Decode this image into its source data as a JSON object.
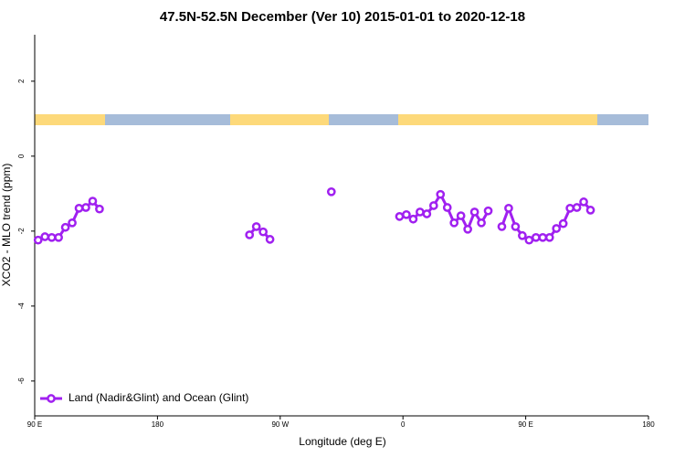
{
  "chart_data": {
    "type": "line",
    "title": "47.5N-52.5N December (Ver 10)   2015-01-01 to 2020-12-18",
    "x_label": "Longitude (deg E)",
    "y_label": "XCO2 - MLO trend (ppm)",
    "x": [
      92.5,
      97.5,
      102.5,
      107.5,
      112.5,
      117.5,
      122.5,
      127.5,
      132.5,
      137.5,
      142.5,
      247.5,
      252.5,
      257.5,
      262.5,
      302.5,
      307.5,
      312.5,
      357.5,
      362.5,
      367.5,
      372.5,
      377.5,
      382.5,
      387.5,
      392.5,
      397.5,
      402.5,
      407.5,
      412.5,
      417.5,
      422.5,
      427.5,
      432.5,
      437.5,
      442.5,
      447.5,
      452.5,
      457.5,
      462.5,
      467.5,
      472.5,
      477.5,
      482.5,
      487.5,
      492.5,
      497.5
    ],
    "series": [
      {
        "name": "Land (Nadir&Glint) and Ocean (Glint)",
        "color": "#a020f0",
        "values": [
          -2.24,
          -2.15,
          -2.17,
          -2.17,
          -1.9,
          -1.78,
          -1.39,
          -1.37,
          -1.2,
          -1.41,
          null,
          -2.1,
          -1.88,
          -2.02,
          -2.22,
          null,
          -0.95,
          null,
          -1.61,
          -1.56,
          -1.68,
          -1.49,
          -1.54,
          -1.32,
          -1.02,
          -1.37,
          -1.78,
          -1.59,
          -1.95,
          -1.49,
          -1.78,
          -1.46,
          null,
          -1.88,
          -1.39,
          -1.88,
          -2.12,
          -2.24,
          -2.17,
          -2.17,
          -2.17,
          -1.93,
          -1.8,
          -1.39,
          -1.37,
          -1.22,
          -1.44
        ]
      }
    ],
    "xlim": [
      90,
      540
    ],
    "xticks": [
      {
        "value": 90,
        "label": "90 E"
      },
      180,
      {
        "value": 270,
        "label": "90 W"
      },
      {
        "value": 360,
        "label": "0"
      },
      {
        "value": 450,
        "label": "90 E"
      },
      180
    ],
    "ylim": [
      -6.93,
      3.24
    ],
    "yticks": [
      -6,
      -4,
      -2,
      0,
      2
    ],
    "legend": "bottom-left"
  }
}
